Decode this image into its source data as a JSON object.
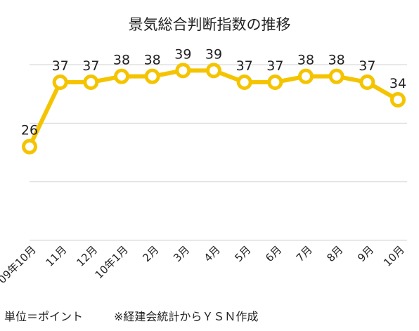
{
  "chart_data": {
    "type": "line",
    "title": "景気総合判断指数の推移",
    "categories": [
      "09年10月",
      "11月",
      "12月",
      "10年1月",
      "2月",
      "3月",
      "4月",
      "5月",
      "6月",
      "7月",
      "8月",
      "9月",
      "10月"
    ],
    "series": [
      {
        "values": [
          26,
          37,
          37,
          38,
          38,
          39,
          39,
          37,
          37,
          38,
          38,
          37,
          34
        ]
      }
    ],
    "ylim": [
      10,
      40
    ],
    "grid": true,
    "data_labels": true,
    "line_color": "#F5C400",
    "marker_fill": "#ffffff",
    "grid_color": "#d9d9d9"
  },
  "footer": {
    "unit_note": "単位＝ポイント",
    "source_note": "※経建会統計からＹＳＮ作成"
  }
}
